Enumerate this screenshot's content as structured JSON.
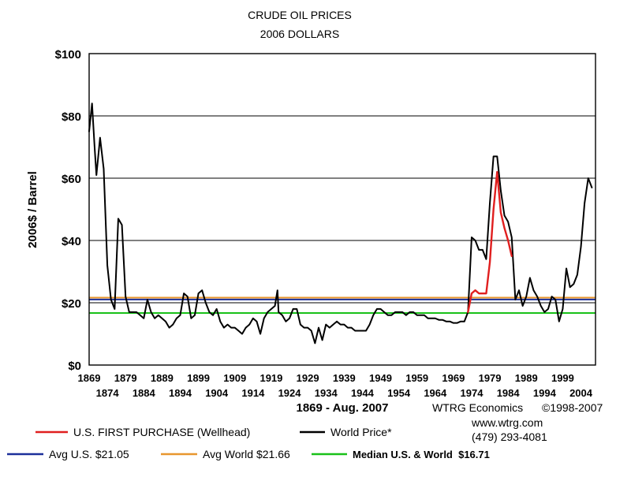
{
  "chart_data": {
    "type": "line",
    "title": "CRUDE OIL PRICES",
    "subtitle": "2006 DOLLARS",
    "ylabel": "2006$ / Barrel",
    "xlabel": "1869 - Aug. 2007",
    "ylim": [
      0,
      100
    ],
    "xlim": [
      1869,
      2008
    ],
    "grid": true,
    "y_ticks": [
      {
        "value": 0,
        "label": "$0"
      },
      {
        "value": 20,
        "label": "$20"
      },
      {
        "value": 40,
        "label": "$40"
      },
      {
        "value": 60,
        "label": "$60"
      },
      {
        "value": 80,
        "label": "$80"
      },
      {
        "value": 100,
        "label": "$100"
      }
    ],
    "x_ticks_upper": [
      {
        "value": 1869,
        "label": "1869"
      },
      {
        "value": 1879,
        "label": "1879"
      },
      {
        "value": 1889,
        "label": "1889"
      },
      {
        "value": 1899,
        "label": "1899"
      },
      {
        "value": 1909,
        "label": "1909"
      },
      {
        "value": 1919,
        "label": "1919"
      },
      {
        "value": 1929,
        "label": "1929"
      },
      {
        "value": 1939,
        "label": "1939"
      },
      {
        "value": 1949,
        "label": "1949"
      },
      {
        "value": 1959,
        "label": "1959"
      },
      {
        "value": 1969,
        "label": "1969"
      },
      {
        "value": 1979,
        "label": "1979"
      },
      {
        "value": 1989,
        "label": "1989"
      },
      {
        "value": 1999,
        "label": "1999"
      }
    ],
    "x_ticks_lower": [
      {
        "value": 1874,
        "label": "1874"
      },
      {
        "value": 1884,
        "label": "1884"
      },
      {
        "value": 1894,
        "label": "1894"
      },
      {
        "value": 1904,
        "label": "1904"
      },
      {
        "value": 1914,
        "label": "1914"
      },
      {
        "value": 1924,
        "label": "1924"
      },
      {
        "value": 1934,
        "label": "1934"
      },
      {
        "value": 1944,
        "label": "1944"
      },
      {
        "value": 1954,
        "label": "1954"
      },
      {
        "value": 1964,
        "label": "1964"
      },
      {
        "value": 1974,
        "label": "1974"
      },
      {
        "value": 1984,
        "label": "1984"
      },
      {
        "value": 1994,
        "label": "1994"
      },
      {
        "value": 2004,
        "label": "2004"
      }
    ],
    "reference_lines": [
      {
        "name": "Avg World $21.66",
        "value": 21.66,
        "color": "#e8962e"
      },
      {
        "name": "Avg U.S. $21.05",
        "value": 21.05,
        "color": "#1c2f9a"
      },
      {
        "name": "Median U.S. & World  $16.71",
        "value": 16.71,
        "color": "#19c119"
      }
    ],
    "series": [
      {
        "name": "World Price*",
        "color": "#000000",
        "points": [
          [
            1869,
            75
          ],
          [
            1869.8,
            84
          ],
          [
            1870.5,
            70
          ],
          [
            1871,
            61
          ],
          [
            1872,
            73
          ],
          [
            1873,
            63
          ],
          [
            1874,
            32
          ],
          [
            1875,
            21
          ],
          [
            1876,
            18
          ],
          [
            1877,
            47
          ],
          [
            1878,
            45
          ],
          [
            1879,
            22
          ],
          [
            1880,
            17
          ],
          [
            1881,
            17
          ],
          [
            1882,
            17
          ],
          [
            1883,
            16
          ],
          [
            1884,
            15
          ],
          [
            1885,
            21
          ],
          [
            1886,
            17
          ],
          [
            1887,
            15
          ],
          [
            1888,
            16
          ],
          [
            1889,
            15
          ],
          [
            1890,
            14
          ],
          [
            1891,
            12
          ],
          [
            1892,
            13
          ],
          [
            1893,
            15
          ],
          [
            1894,
            16
          ],
          [
            1895,
            23
          ],
          [
            1896,
            22
          ],
          [
            1897,
            15
          ],
          [
            1898,
            16
          ],
          [
            1899,
            23
          ],
          [
            1900,
            24
          ],
          [
            1901,
            20
          ],
          [
            1902,
            17
          ],
          [
            1903,
            16
          ],
          [
            1904,
            18
          ],
          [
            1905,
            14
          ],
          [
            1906,
            12
          ],
          [
            1907,
            13
          ],
          [
            1908,
            12
          ],
          [
            1909,
            12
          ],
          [
            1910,
            11
          ],
          [
            1911,
            10
          ],
          [
            1912,
            12
          ],
          [
            1913,
            13
          ],
          [
            1914,
            15
          ],
          [
            1915,
            14
          ],
          [
            1916,
            10
          ],
          [
            1917,
            15
          ],
          [
            1918,
            17
          ],
          [
            1919,
            18
          ],
          [
            1920,
            19
          ],
          [
            1920.7,
            24
          ],
          [
            1921,
            17
          ],
          [
            1922,
            16
          ],
          [
            1923,
            14
          ],
          [
            1924,
            15
          ],
          [
            1925,
            18
          ],
          [
            1926,
            18
          ],
          [
            1927,
            13
          ],
          [
            1928,
            12
          ],
          [
            1929,
            12
          ],
          [
            1930,
            11
          ],
          [
            1931,
            7
          ],
          [
            1932,
            12
          ],
          [
            1933,
            8
          ],
          [
            1934,
            13
          ],
          [
            1935,
            12
          ],
          [
            1936,
            13
          ],
          [
            1937,
            14
          ],
          [
            1938,
            13
          ],
          [
            1939,
            13
          ],
          [
            1940,
            12
          ],
          [
            1941,
            12
          ],
          [
            1942,
            11
          ],
          [
            1943,
            11
          ],
          [
            1944,
            11
          ],
          [
            1945,
            11
          ],
          [
            1946,
            13
          ],
          [
            1947,
            16
          ],
          [
            1948,
            18
          ],
          [
            1949,
            18
          ],
          [
            1950,
            17
          ],
          [
            1951,
            16
          ],
          [
            1952,
            16
          ],
          [
            1953,
            17
          ],
          [
            1954,
            17
          ],
          [
            1955,
            17
          ],
          [
            1956,
            16
          ],
          [
            1957,
            17
          ],
          [
            1958,
            17
          ],
          [
            1959,
            16
          ],
          [
            1960,
            16
          ],
          [
            1961,
            16
          ],
          [
            1962,
            15
          ],
          [
            1963,
            15
          ],
          [
            1964,
            15
          ],
          [
            1965,
            14.5
          ],
          [
            1966,
            14.5
          ],
          [
            1967,
            14
          ],
          [
            1968,
            14
          ],
          [
            1969,
            13.5
          ],
          [
            1970,
            13.5
          ],
          [
            1971,
            14
          ],
          [
            1972,
            14
          ],
          [
            1973,
            17
          ],
          [
            1974,
            41
          ],
          [
            1975,
            40
          ],
          [
            1976,
            37
          ],
          [
            1977,
            37
          ],
          [
            1978,
            34
          ],
          [
            1979,
            52
          ],
          [
            1980,
            67
          ],
          [
            1981,
            67
          ],
          [
            1982,
            56
          ],
          [
            1983,
            48
          ],
          [
            1984,
            46
          ],
          [
            1985,
            41
          ],
          [
            1986,
            21
          ],
          [
            1987,
            24
          ],
          [
            1988,
            19
          ],
          [
            1989,
            22
          ],
          [
            1990,
            28
          ],
          [
            1991,
            24
          ],
          [
            1992,
            22
          ],
          [
            1993,
            19
          ],
          [
            1994,
            17
          ],
          [
            1995,
            18
          ],
          [
            1996,
            22
          ],
          [
            1997,
            21
          ],
          [
            1998,
            14
          ],
          [
            1999,
            18
          ],
          [
            2000,
            31
          ],
          [
            2001,
            25
          ],
          [
            2002,
            26
          ],
          [
            2003,
            29
          ],
          [
            2004,
            38
          ],
          [
            2005,
            52
          ],
          [
            2006,
            60
          ],
          [
            2007,
            57
          ]
        ]
      },
      {
        "name": "U.S. FIRST PURCHASE (Wellhead)",
        "color": "#e01f1f",
        "points": [
          [
            1973,
            17
          ],
          [
            1974,
            23
          ],
          [
            1975,
            24
          ],
          [
            1976,
            23
          ],
          [
            1977,
            23
          ],
          [
            1978,
            23
          ],
          [
            1979,
            33
          ],
          [
            1980,
            50
          ],
          [
            1981,
            62
          ],
          [
            1982,
            49
          ],
          [
            1983,
            44
          ],
          [
            1984,
            40
          ],
          [
            1985,
            35
          ]
        ]
      }
    ]
  },
  "legend": {
    "items": [
      {
        "label": "U.S. FIRST PURCHASE (Wellhead)",
        "color": "#e01f1f"
      },
      {
        "label": "World Price*",
        "color": "#000000"
      },
      {
        "label": "Avg U.S. $21.05",
        "color": "#1c2f9a"
      },
      {
        "label": "Avg World $21.66",
        "color": "#e8962e"
      },
      {
        "label": "Median U.S. & World  $16.71",
        "color": "#19c119"
      }
    ]
  },
  "credits": {
    "org": "WTRG Economics",
    "copyright": "©1998-2007",
    "site": "www.wtrg.com",
    "phone": "(479) 293-4081"
  }
}
